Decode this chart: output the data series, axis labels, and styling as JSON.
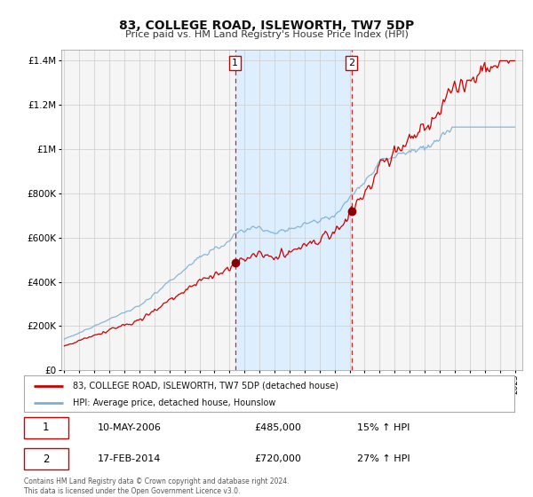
{
  "title": "83, COLLEGE ROAD, ISLEWORTH, TW7 5DP",
  "subtitle": "Price paid vs. HM Land Registry's House Price Index (HPI)",
  "legend_line1": "83, COLLEGE ROAD, ISLEWORTH, TW7 5DP (detached house)",
  "legend_line2": "HPI: Average price, detached house, Hounslow",
  "sale1_date": "10-MAY-2006",
  "sale1_price": "£485,000",
  "sale1_hpi": "15% ↑ HPI",
  "sale1_year": 2006.37,
  "sale1_value": 485000,
  "sale2_date": "17-FEB-2014",
  "sale2_price": "£720,000",
  "sale2_hpi": "27% ↑ HPI",
  "sale2_year": 2014.12,
  "sale2_value": 720000,
  "red_color": "#cc0000",
  "blue_color": "#7bafd4",
  "shaded_region_color": "#ddeeff",
  "grid_color": "#cccccc",
  "background_color": "#f5f5f5",
  "ylim": [
    0,
    1450000
  ],
  "xlim_start": 1994.8,
  "xlim_end": 2025.5,
  "footnote1": "Contains HM Land Registry data © Crown copyright and database right 2024.",
  "footnote2": "This data is licensed under the Open Government Licence v3.0."
}
